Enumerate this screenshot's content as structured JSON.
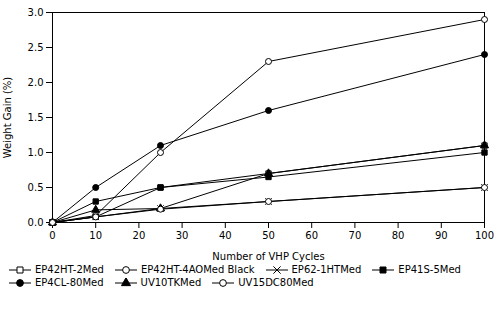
{
  "chart_data": {
    "type": "line",
    "x": [
      0,
      10,
      25,
      50,
      100
    ],
    "series": [
      {
        "name": "EP42HT-2Med",
        "values": [
          0.0,
          0.08,
          0.5,
          0.7,
          1.1
        ],
        "color": "black",
        "marker": "square-open",
        "line_style": "solid"
      },
      {
        "name": "EP42HT-4AOMed Black",
        "values": [
          0.0,
          0.1,
          1.0,
          2.3,
          2.9
        ],
        "color": "black",
        "marker": "circle-open",
        "line_style": "solid"
      },
      {
        "name": "EP62-1HTMed",
        "values": [
          0.0,
          0.08,
          0.2,
          0.3,
          0.5
        ],
        "color": "black",
        "marker": "x",
        "line_style": "solid"
      },
      {
        "name": "EP41S-5Med",
        "values": [
          0.0,
          0.3,
          0.5,
          0.65,
          1.0
        ],
        "color": "black",
        "marker": "square",
        "line_style": "solid"
      },
      {
        "name": "EP4CL-80Med",
        "values": [
          0.0,
          0.5,
          1.1,
          1.6,
          2.4
        ],
        "color": "black",
        "marker": "circle",
        "line_style": "solid"
      },
      {
        "name": "UV10TKMed",
        "values": [
          0.0,
          0.18,
          0.2,
          0.7,
          1.1
        ],
        "color": "black",
        "marker": "triangle",
        "line_style": "solid"
      },
      {
        "name": "UV15DC80Med",
        "values": [
          0.0,
          0.08,
          0.19,
          0.3,
          0.5
        ],
        "color": "black",
        "marker": "circle-open",
        "line_style": "solid"
      }
    ],
    "xlabel": "Number of VHP Cycles",
    "ylabel": "Weight Gain (%)",
    "xlim": [
      0,
      100
    ],
    "ylim": [
      0.0,
      3.0
    ],
    "xticks": [
      0,
      10,
      20,
      30,
      40,
      50,
      60,
      70,
      80,
      90,
      100
    ],
    "yticks": [
      {
        "value": 0.0,
        "label": "0.0"
      },
      0.5,
      {
        "value": 1.0,
        "label": "1.0"
      },
      1.5,
      {
        "value": 2.0,
        "label": "2.0"
      },
      2.5,
      {
        "value": 3.0,
        "label": "3.0"
      }
    ],
    "grid": false,
    "legend": "bottom"
  }
}
